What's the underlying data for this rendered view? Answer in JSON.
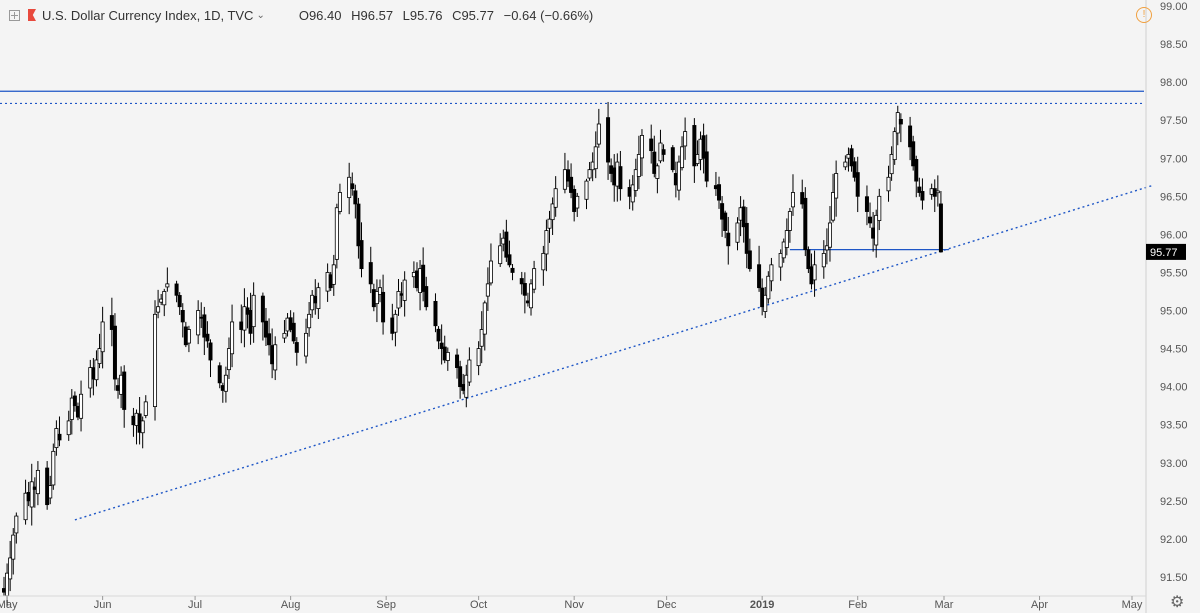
{
  "header": {
    "title": "U.S. Dollar Currency Index, 1D, TVC",
    "open": "O96.40",
    "high": "H96.57",
    "low": "L95.76",
    "close": "C95.77",
    "change": "−0.64 (−0.66%)"
  },
  "icons": {
    "toggle": "collapse-toggle-icon",
    "flag": "symbol-flag-icon",
    "warning": "warning-icon",
    "settings": "gear-icon"
  },
  "colors": {
    "up": "#ffffff",
    "down": "#000000",
    "wick": "#000000",
    "trend": "#1e56c6",
    "last_price_bg": "#000000",
    "last_price_text": "#ffffff"
  },
  "chart_data": {
    "type": "candlestick",
    "start_date": "2018-04-30",
    "ylim": [
      91.25,
      99.0
    ],
    "yticks": [
      "91.50",
      "92.00",
      "92.50",
      "93.00",
      "93.50",
      "94.00",
      "94.50",
      "95.00",
      "95.50",
      "96.00",
      "96.50",
      "97.00",
      "97.50",
      "98.00",
      "98.50",
      "99.00"
    ],
    "xticks": [
      {
        "label": "May",
        "date": "2018-05-01"
      },
      {
        "label": "Jun",
        "date": "2018-06-01"
      },
      {
        "label": "Jul",
        "date": "2018-07-01"
      },
      {
        "label": "Aug",
        "date": "2018-08-01"
      },
      {
        "label": "Sep",
        "date": "2018-09-01"
      },
      {
        "label": "Oct",
        "date": "2018-10-01"
      },
      {
        "label": "Nov",
        "date": "2018-11-01"
      },
      {
        "label": "Dec",
        "date": "2018-12-01"
      },
      {
        "label": "2019",
        "date": "2019-01-01"
      },
      {
        "label": "Feb",
        "date": "2019-02-01"
      },
      {
        "label": "Mar",
        "date": "2019-03-01"
      },
      {
        "label": "Apr",
        "date": "2019-04-01"
      },
      {
        "label": "May",
        "date": "2019-05-01"
      }
    ],
    "last_price": "95.77",
    "last_price_value": 95.77,
    "closes": [
      91.3,
      91.55,
      91.75,
      92.05,
      92.3,
      92.6,
      92.5,
      92.75,
      92.65,
      92.9,
      92.45,
      92.7,
      93.15,
      93.45,
      93.3,
      93.55,
      93.85,
      93.75,
      93.6,
      93.9,
      94.25,
      94.1,
      94.35,
      94.5,
      94.85,
      94.75,
      94.1,
      93.95,
      94.15,
      93.7,
      93.5,
      93.65,
      93.4,
      93.55,
      93.8,
      94.95,
      95.05,
      95.15,
      95.25,
      95.35,
      95.2,
      95.05,
      94.85,
      94.55,
      94.75,
      95.0,
      94.9,
      94.65,
      94.6,
      94.35,
      94.05,
      93.95,
      94.15,
      94.5,
      94.85,
      94.75,
      95.05,
      94.95,
      94.7,
      95.2,
      94.85,
      94.65,
      94.55,
      94.3,
      94.55,
      94.7,
      94.9,
      94.75,
      94.6,
      94.45,
      94.7,
      94.95,
      95.2,
      95.1,
      95.3,
      95.5,
      95.3,
      95.6,
      96.35,
      96.55,
      96.75,
      96.6,
      96.4,
      95.85,
      95.55,
      95.35,
      95.05,
      95.25,
      95.3,
      94.85,
      94.7,
      94.95,
      95.25,
      95.2,
      95.4,
      95.5,
      95.3,
      95.55,
      95.25,
      95.05,
      94.8,
      94.6,
      94.5,
      94.35,
      94.45,
      94.25,
      94.0,
      93.95,
      94.15,
      94.35,
      94.5,
      94.75,
      95.1,
      95.35,
      95.65,
      95.85,
      95.95,
      95.7,
      95.6,
      95.5,
      95.35,
      95.2,
      95.1,
      95.35,
      95.55,
      95.75,
      96.05,
      96.2,
      96.4,
      96.6,
      96.85,
      96.7,
      96.55,
      96.3,
      96.5,
      96.7,
      96.85,
      96.95,
      97.15,
      97.45,
      96.95,
      96.8,
      96.65,
      96.95,
      96.6,
      96.5,
      96.65,
      96.85,
      97.05,
      97.3,
      97.1,
      96.8,
      96.9,
      97.2,
      97.05,
      96.85,
      96.65,
      96.95,
      97.15,
      97.35,
      96.9,
      97.05,
      97.25,
      97.0,
      96.7,
      96.6,
      96.45,
      96.2,
      96.05,
      95.85,
      96.15,
      96.35,
      96.1,
      95.75,
      95.55,
      95.3,
      95.05,
      95.2,
      95.45,
      95.6,
      95.75,
      95.9,
      96.05,
      96.3,
      96.55,
      96.4,
      95.8,
      95.55,
      95.35,
      95.6,
      95.75,
      95.85,
      96.15,
      96.55,
      96.8,
      96.95,
      97.05,
      96.9,
      96.75,
      96.5,
      96.3,
      96.15,
      95.95,
      96.25,
      96.5,
      96.75,
      97.05,
      97.35,
      97.6,
      97.45,
      97.15,
      96.9,
      96.7,
      96.55,
      96.45,
      96.6,
      96.5,
      96.57,
      95.77
    ]
  }
}
